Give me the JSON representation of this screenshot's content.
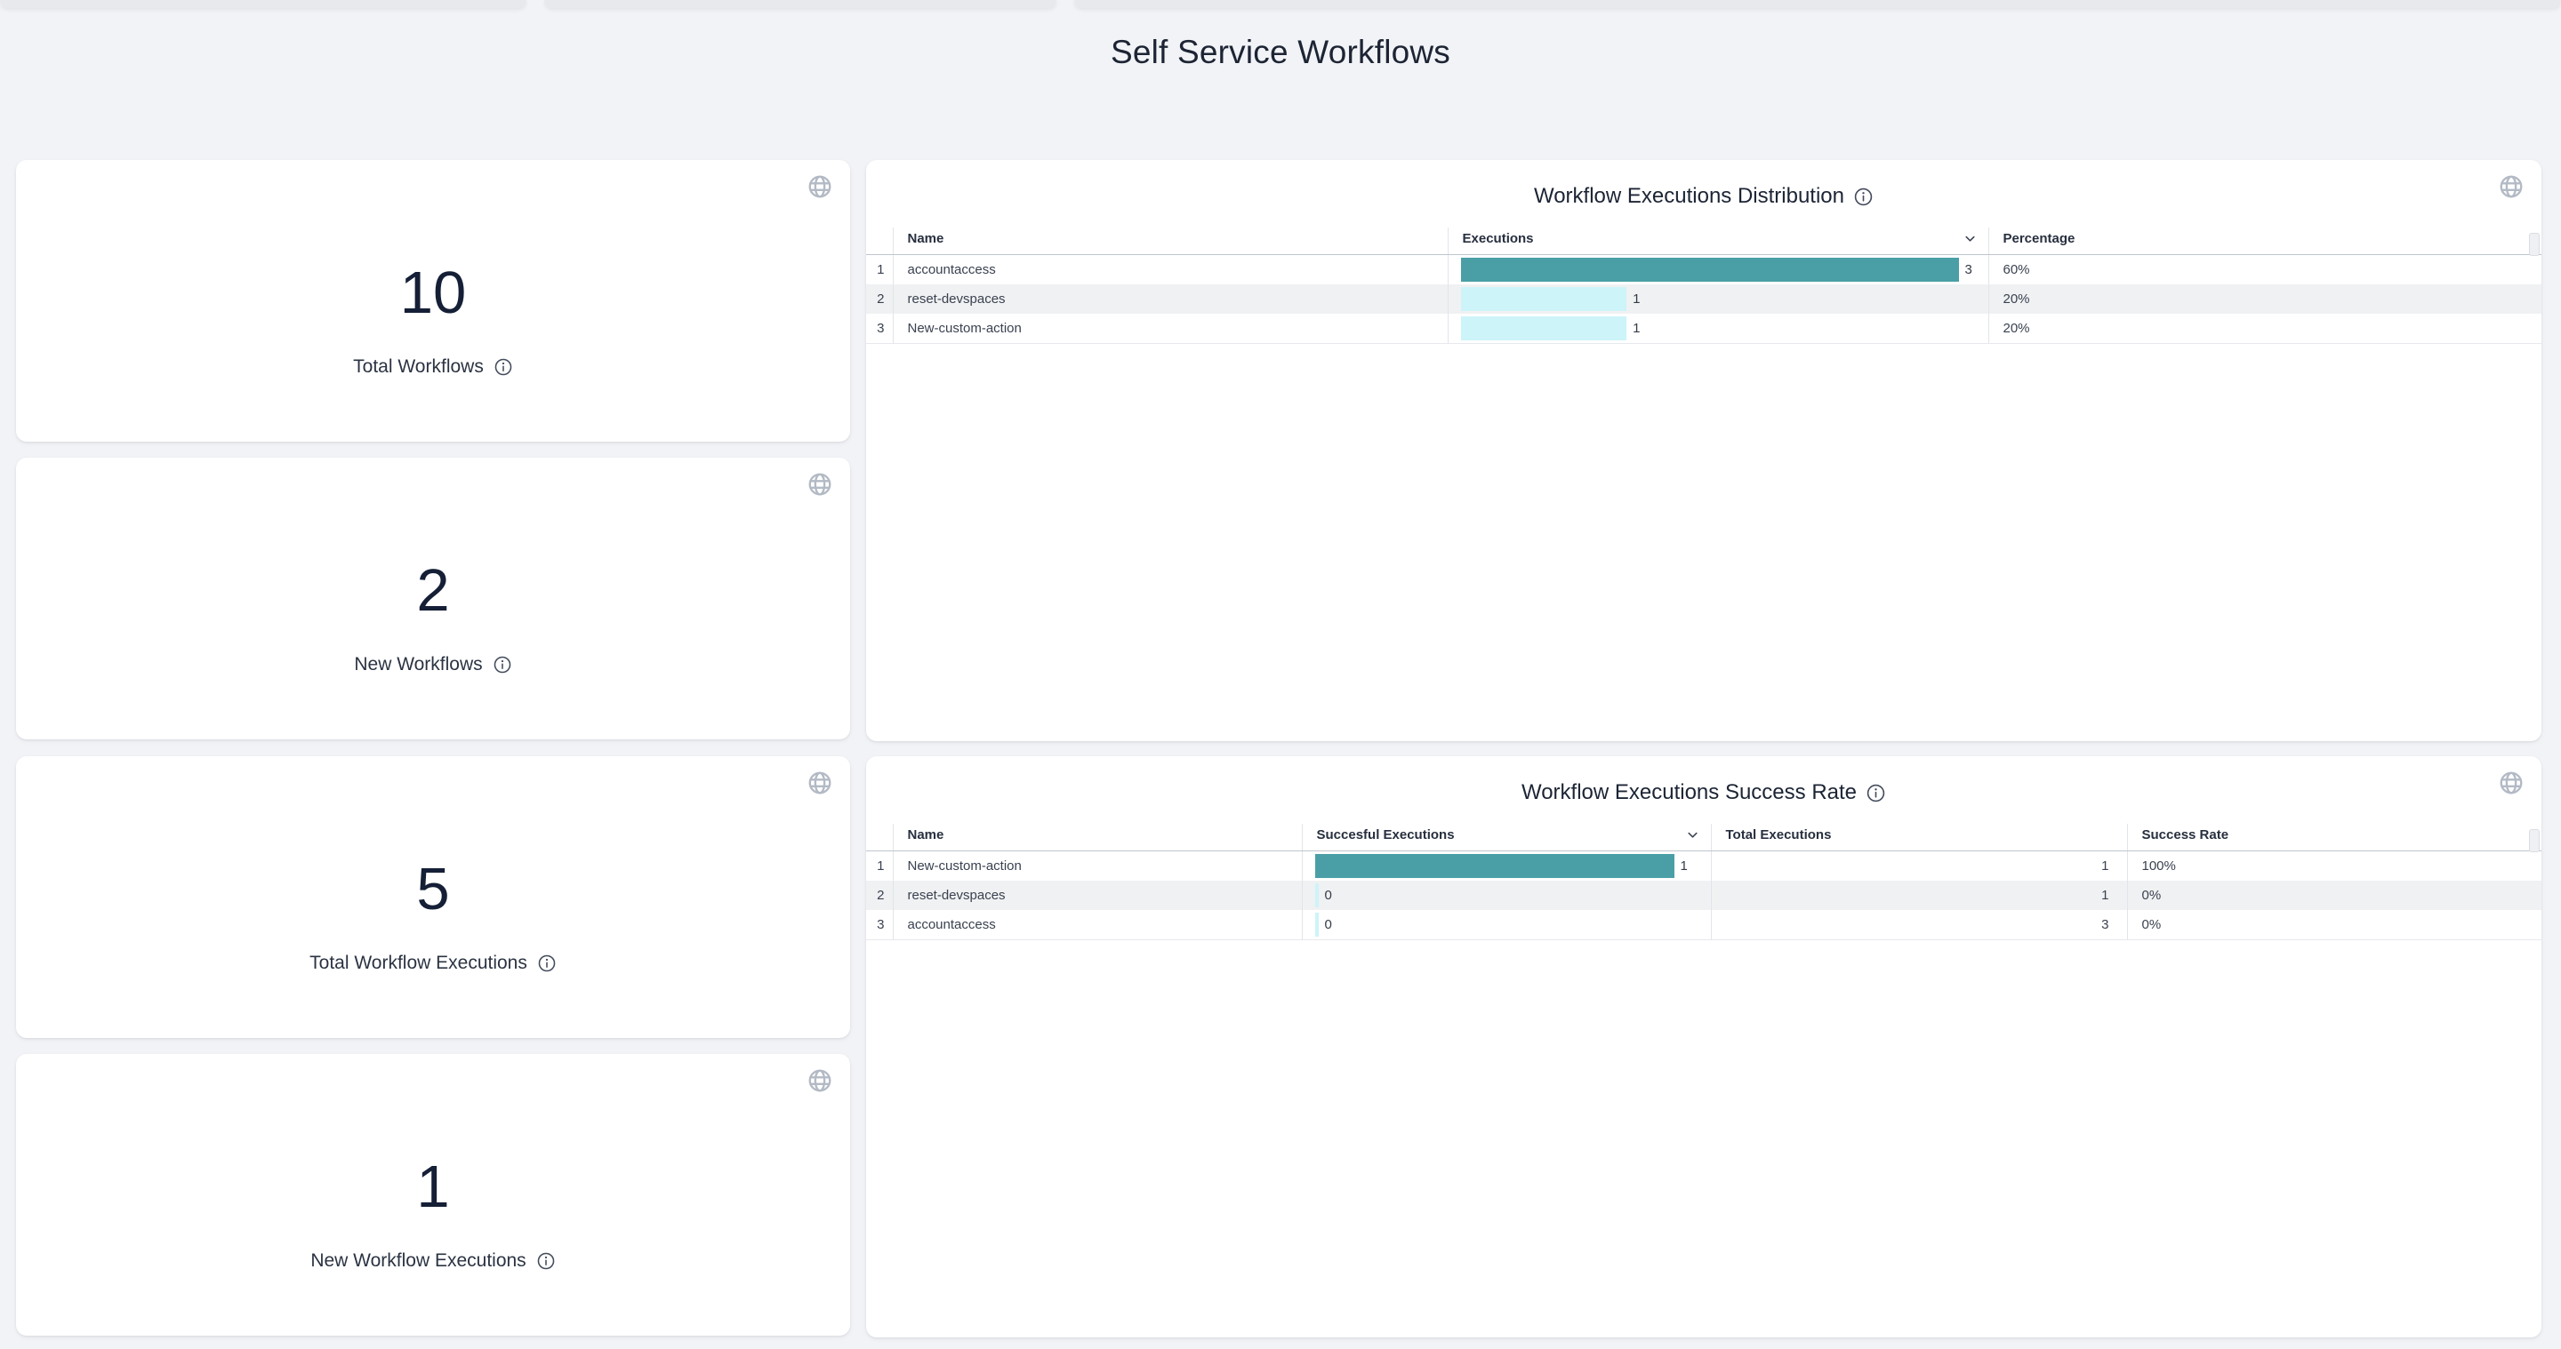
{
  "page": {
    "title": "Self Service Workflows"
  },
  "colors": {
    "bar_teal": "#4A9FA6",
    "bar_light_cyan": "#CDF4F9",
    "row_alt": "#F0F1F2"
  },
  "icons": {
    "globe": "globe-icon",
    "info": "info-icon",
    "sort": "chevron-down-icon"
  },
  "stat_cards": [
    {
      "value": "10",
      "label": "Total Workflows"
    },
    {
      "value": "2",
      "label": "New Workflows"
    },
    {
      "value": "5",
      "label": "Total Workflow Executions"
    },
    {
      "value": "1",
      "label": "New Workflow Executions"
    }
  ],
  "tables": [
    {
      "title": "Workflow Executions Distribution",
      "columns": [
        "Name",
        "Executions",
        "Percentage"
      ],
      "sort_column": "Executions",
      "rows": [
        {
          "index": "1",
          "name": "accountaccess",
          "executions": 3,
          "percentage": "60%"
        },
        {
          "index": "2",
          "name": "reset-devspaces",
          "executions": 1,
          "percentage": "20%"
        },
        {
          "index": "3",
          "name": "New-custom-action",
          "executions": 1,
          "percentage": "20%"
        }
      ]
    },
    {
      "title": "Workflow Executions Success Rate",
      "columns": [
        "Name",
        "Succesful Executions",
        "Total Executions",
        "Success Rate"
      ],
      "sort_column": "Succesful Executions",
      "rows": [
        {
          "index": "1",
          "name": "New-custom-action",
          "successful": 1,
          "total": 1,
          "rate": "100%"
        },
        {
          "index": "2",
          "name": "reset-devspaces",
          "successful": 0,
          "total": 1,
          "rate": "0%"
        },
        {
          "index": "3",
          "name": "accountaccess",
          "successful": 0,
          "total": 3,
          "rate": "0%"
        }
      ]
    }
  ]
}
